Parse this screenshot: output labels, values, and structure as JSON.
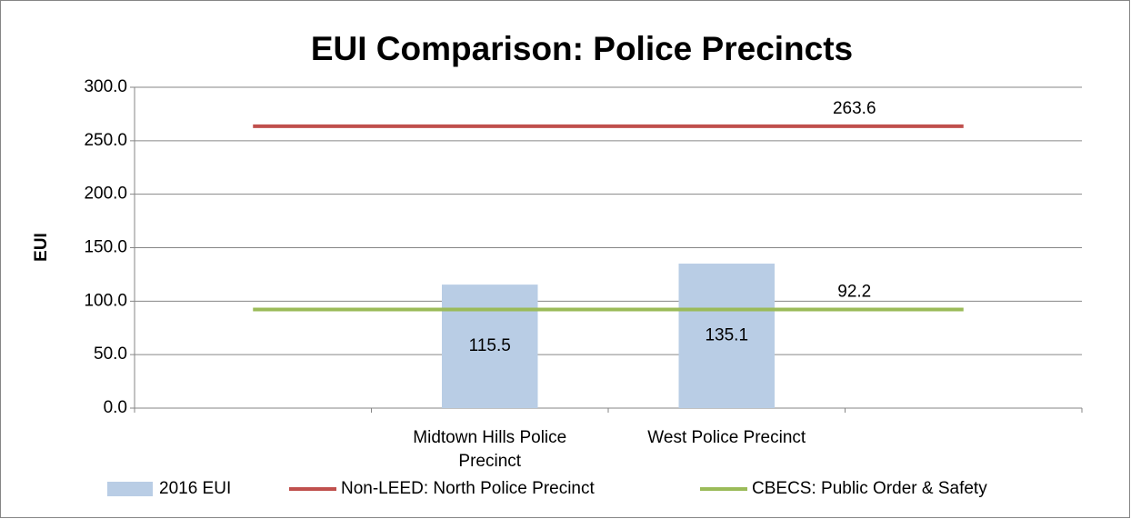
{
  "chart_data": {
    "type": "bar",
    "title": "EUI Comparison: Police Precincts",
    "y_label": "EUI",
    "categories": [
      null,
      "Midtown Hills Police Precinct",
      "West Police Precinct",
      null
    ],
    "series": [
      {
        "name": "2016 EUI",
        "type": "bar",
        "color": "#b9cde5",
        "values": [
          null,
          115.5,
          135.1,
          null
        ]
      },
      {
        "name": "Non-LEED: North Police Precinct",
        "type": "line",
        "color": "#c0504d",
        "values": [
          263.6,
          263.6,
          263.6,
          263.6
        ]
      },
      {
        "name": "CBECS: Public Order & Safety",
        "type": "line",
        "color": "#9bbb59",
        "values": [
          92.2,
          92.2,
          92.2,
          92.2
        ]
      }
    ],
    "ylim": [
      0,
      300
    ],
    "yticks": [
      {
        "value": 0,
        "label": "0.0"
      },
      {
        "value": 50,
        "label": "50.0"
      },
      {
        "value": 100,
        "label": "100.0"
      },
      {
        "value": 150,
        "label": "150.0"
      },
      {
        "value": 200,
        "label": "200.0"
      },
      {
        "value": 250,
        "label": "250.0"
      },
      {
        "value": 300,
        "label": "300.0"
      }
    ],
    "grid": true,
    "legend": "bottom"
  }
}
